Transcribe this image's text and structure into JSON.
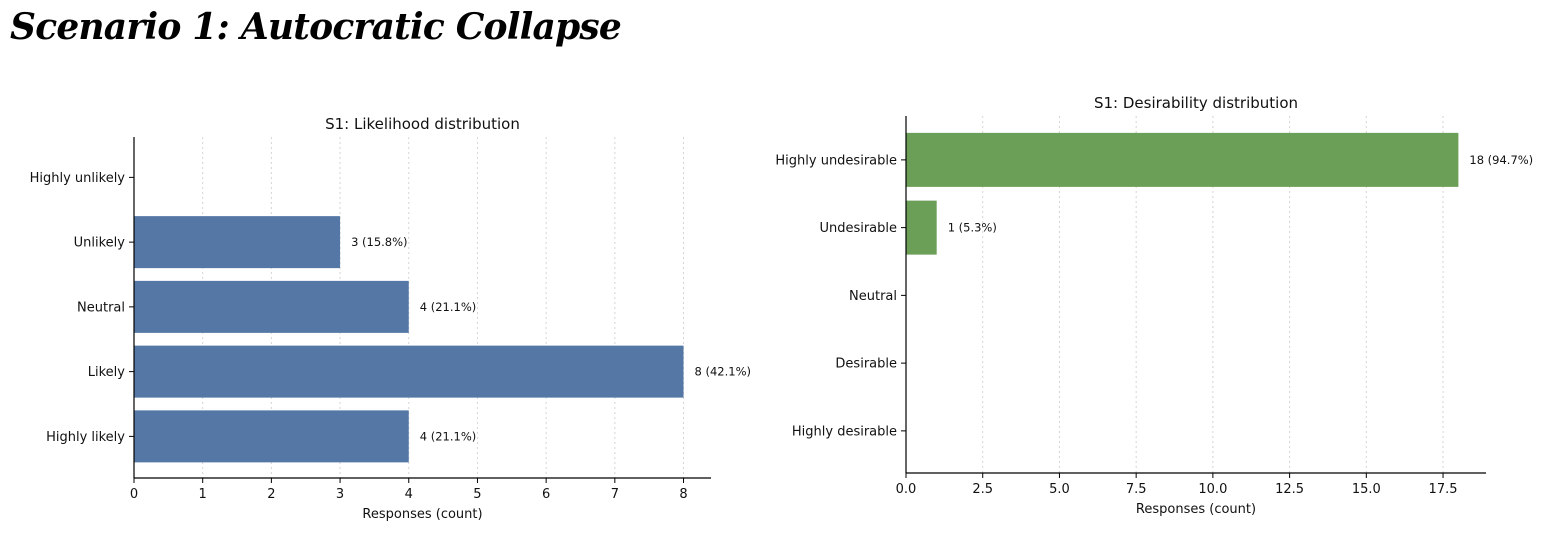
{
  "page": {
    "title": "Scenario 1: Autocratic Collapse"
  },
  "chart_data": [
    {
      "type": "bar",
      "orientation": "horizontal",
      "title": "S1: Likelihood distribution",
      "xlabel": "Responses (count)",
      "ylabel": "",
      "categories": [
        "Highly unlikely",
        "Unlikely",
        "Neutral",
        "Likely",
        "Highly likely"
      ],
      "values": [
        0,
        3,
        4,
        8,
        4
      ],
      "data_labels": [
        "",
        "3 (15.8%)",
        "4 (21.1%)",
        "8 (42.1%)",
        "4 (21.1%)"
      ],
      "xlim": [
        0,
        8.4
      ],
      "xticks": [
        0,
        1,
        2,
        3,
        4,
        5,
        6,
        7,
        8
      ],
      "xtick_labels": [
        "0",
        "1",
        "2",
        "3",
        "4",
        "5",
        "6",
        "7",
        "8"
      ],
      "grid": "vertical-dotted",
      "color": "#5577a5"
    },
    {
      "type": "bar",
      "orientation": "horizontal",
      "title": "S1: Desirability distribution",
      "xlabel": "Responses (count)",
      "ylabel": "",
      "categories": [
        "Highly undesirable",
        "Undesirable",
        "Neutral",
        "Desirable",
        "Highly desirable"
      ],
      "values": [
        18,
        1,
        0,
        0,
        0
      ],
      "data_labels": [
        "18 (94.7%)",
        "1 (5.3%)",
        "",
        "",
        ""
      ],
      "xlim": [
        0,
        18.9
      ],
      "xticks": [
        0,
        2.5,
        5,
        7.5,
        10,
        12.5,
        15,
        17.5
      ],
      "xtick_labels": [
        "0.0",
        "2.5",
        "5.0",
        "7.5",
        "10.0",
        "12.5",
        "15.0",
        "17.5"
      ],
      "grid": "vertical-dotted",
      "color": "#6b9e56"
    }
  ]
}
